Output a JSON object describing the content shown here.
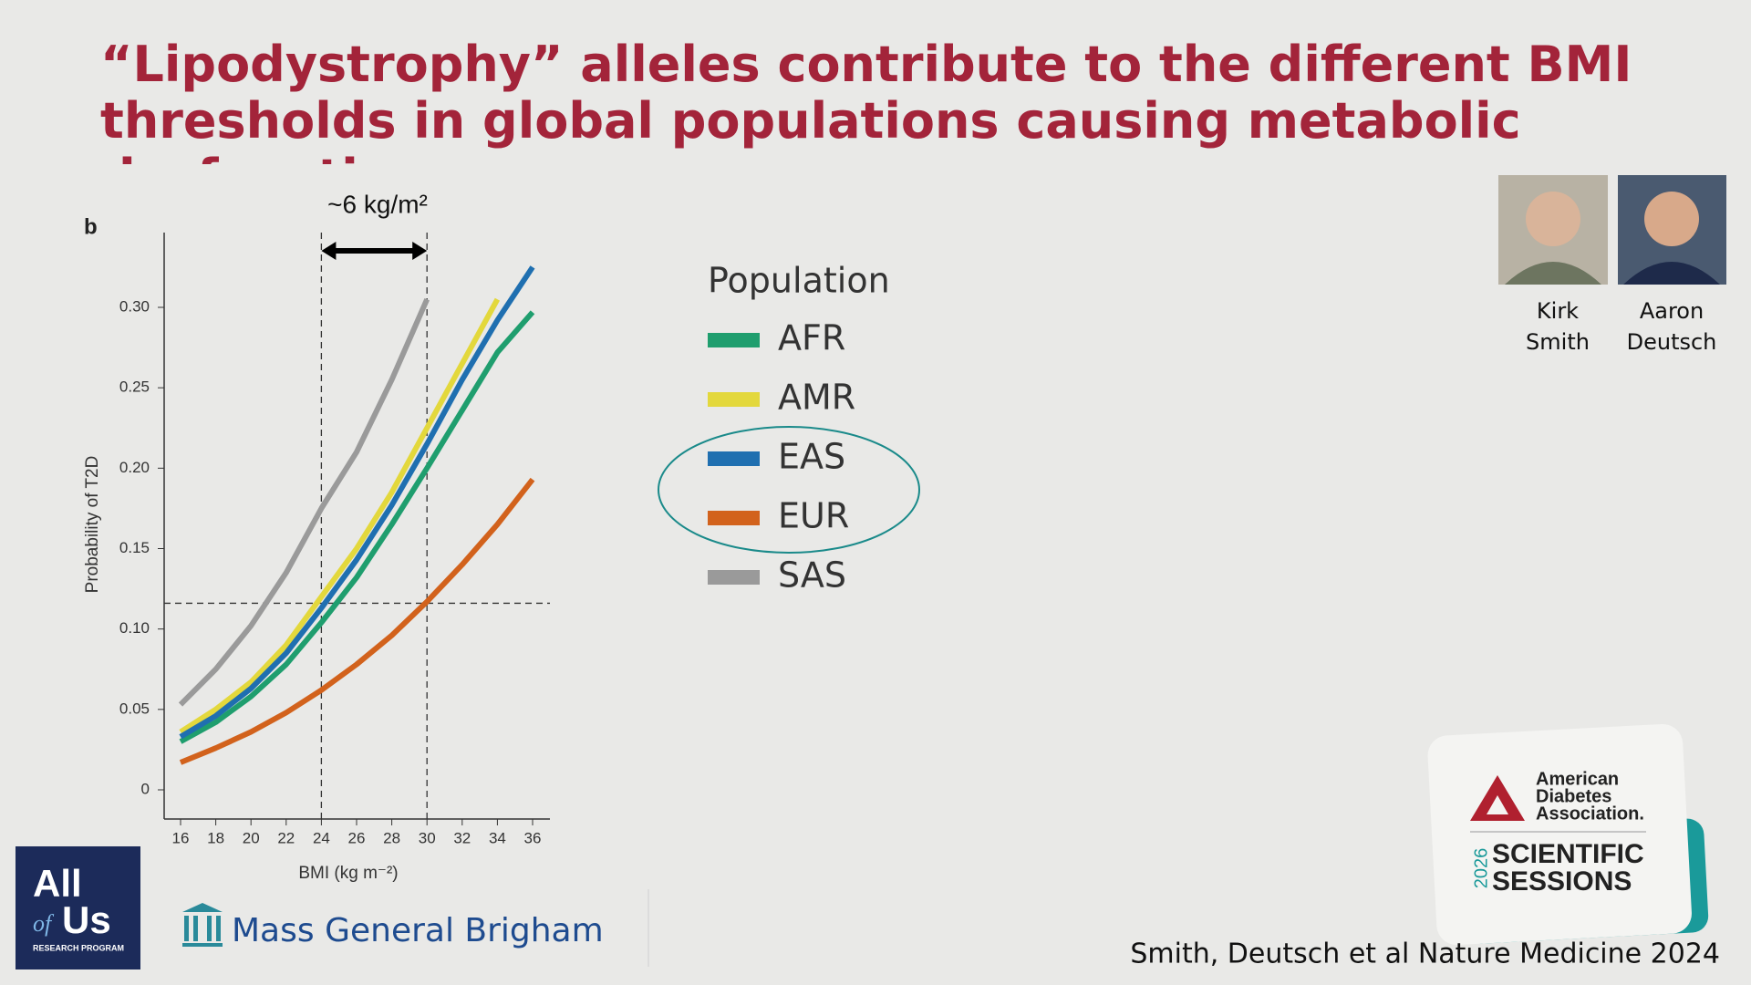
{
  "slide": {
    "title": "“Lipodystrophy” alleles contribute to the different BMI thresholds in global populations causing metabolic dysfunction",
    "authors": [
      {
        "first": "Kirk",
        "last": "Smith"
      },
      {
        "first": "Aaron",
        "last": "Deutsch"
      }
    ],
    "logo_all_of_us": {
      "line1": "All",
      "line2a": "of",
      "line2b": "Us",
      "sub": "RESEARCH PROGRAM"
    },
    "logo_mgb": "Mass General Brigham",
    "badge": {
      "org": [
        "American",
        "Diabetes",
        "Association."
      ],
      "year": "2026",
      "event": [
        "SCIENTIFIC",
        "SESSIONS"
      ]
    },
    "citation": "Smith, Deutsch et al Nature Medicine 2024"
  },
  "chart_data": {
    "type": "line",
    "panel_label": "b",
    "annotation": "~6 kg/m²",
    "x_label": "BMI (kg m⁻²)",
    "y_label": "Probability of T2D",
    "legend_title": "Population",
    "x": [
      16,
      18,
      20,
      22,
      24,
      26,
      28,
      30,
      32,
      34,
      36
    ],
    "series": [
      {
        "name": "AFR",
        "color": "#1f9e6e",
        "values": [
          0.03,
          0.042,
          0.058,
          0.078,
          0.104,
          0.132,
          0.165,
          0.2,
          0.236,
          0.272,
          0.297
        ]
      },
      {
        "name": "AMR",
        "color": "#e3d83c",
        "values": [
          0.036,
          0.05,
          0.067,
          0.09,
          0.12,
          0.15,
          0.185,
          0.225,
          0.265,
          0.305,
          null
        ]
      },
      {
        "name": "EAS",
        "color": "#1f6fb0",
        "values": [
          0.033,
          0.046,
          0.063,
          0.085,
          0.113,
          0.143,
          0.177,
          0.215,
          0.255,
          0.292,
          0.325
        ]
      },
      {
        "name": "EUR",
        "color": "#d2621c",
        "values": [
          0.017,
          0.026,
          0.036,
          0.048,
          0.062,
          0.078,
          0.096,
          0.117,
          0.14,
          0.165,
          0.193
        ]
      },
      {
        "name": "SAS",
        "color": "#9a9a9a",
        "values": [
          0.053,
          0.075,
          0.102,
          0.135,
          0.175,
          0.21,
          0.255,
          0.305,
          null,
          null,
          null
        ]
      }
    ],
    "reference_lines": {
      "x": [
        24,
        30
      ],
      "y": 0.116
    },
    "xlim": [
      15,
      37
    ],
    "xticks": [
      16,
      18,
      20,
      22,
      24,
      26,
      28,
      30,
      32,
      34,
      36
    ],
    "ylim": [
      -0.01,
      0.34
    ],
    "yticks": [
      0,
      0.05,
      {
        "value": 0.1,
        "label": "0.10"
      },
      0.15,
      {
        "value": 0.2,
        "label": "0.20"
      },
      0.25,
      {
        "value": 0.3,
        "label": "0.30"
      }
    ],
    "grid": false
  }
}
